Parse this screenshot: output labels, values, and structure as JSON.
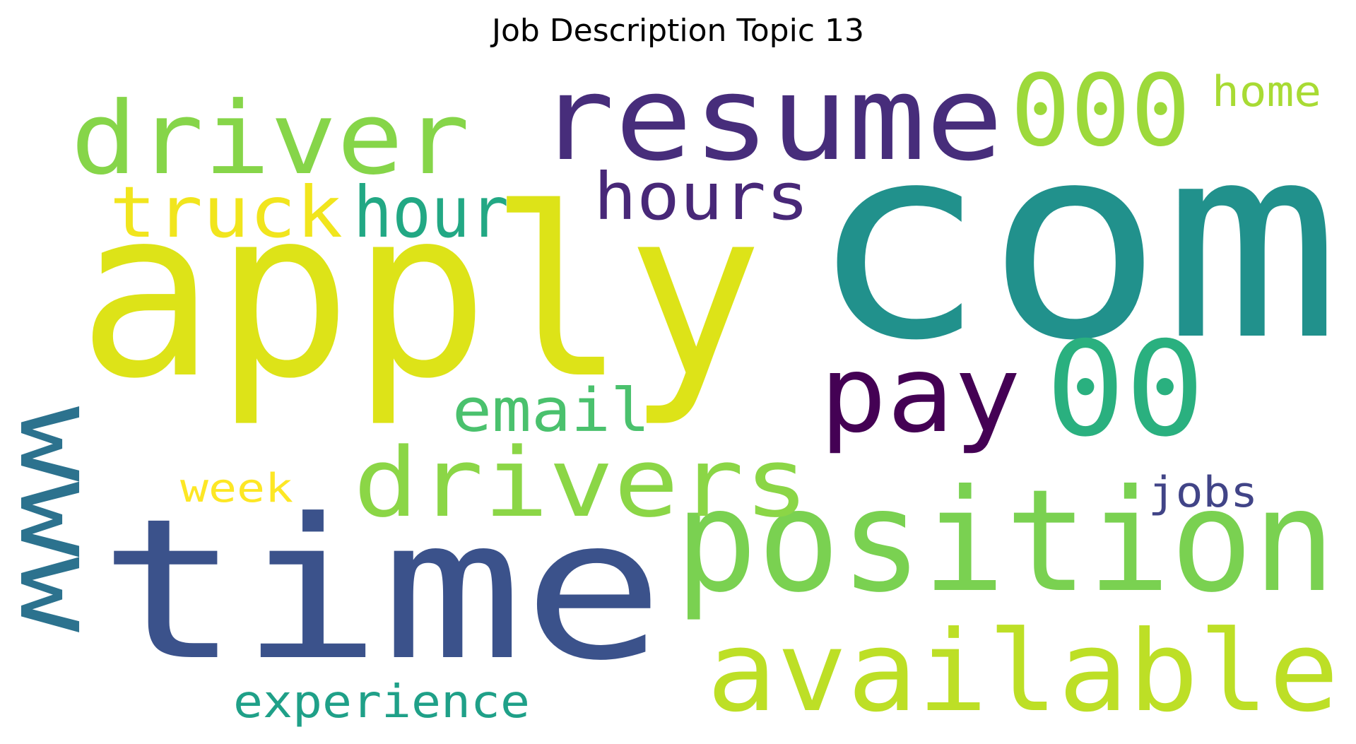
{
  "chart_data": {
    "type": "wordcloud",
    "title": "Job Description Topic 13",
    "words": [
      {
        "text": "com",
        "color": "#21918c"
      },
      {
        "text": "apply",
        "color": "#dde318"
      },
      {
        "text": "time",
        "color": "#3b528b"
      },
      {
        "text": "resume",
        "color": "#472d7b"
      },
      {
        "text": "position",
        "color": "#7ad151"
      },
      {
        "text": "available",
        "color": "#bddf26"
      },
      {
        "text": "www",
        "color": "#2c728e"
      },
      {
        "text": "driver",
        "color": "#86d549"
      },
      {
        "text": "drivers",
        "color": "#8bd646"
      },
      {
        "text": "pay",
        "color": "#440154"
      },
      {
        "text": "00",
        "color": "#2ab07f"
      },
      {
        "text": "000",
        "color": "#9dd93b"
      },
      {
        "text": "truck",
        "color": "#f1e51d"
      },
      {
        "text": "hours",
        "color": "#482878"
      },
      {
        "text": "hour",
        "color": "#22a884"
      },
      {
        "text": "email",
        "color": "#4ac16d"
      },
      {
        "text": "experience",
        "color": "#1fa088"
      },
      {
        "text": "home",
        "color": "#a8db34"
      },
      {
        "text": "jobs",
        "color": "#414487"
      },
      {
        "text": "week",
        "color": "#fde725"
      }
    ]
  }
}
